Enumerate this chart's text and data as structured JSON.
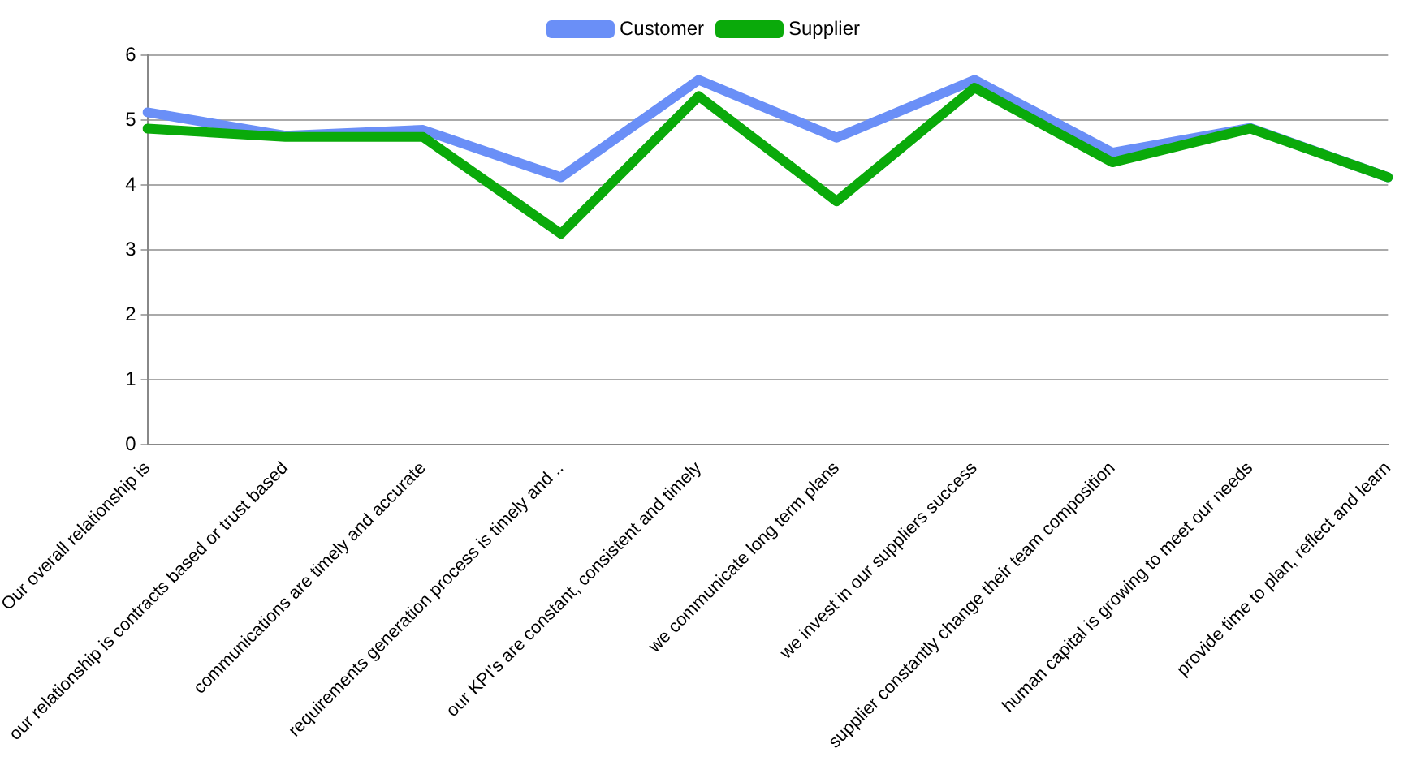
{
  "chart_data": {
    "type": "line",
    "categories": [
      "Our overall relationship is",
      "our relationship is contracts based or trust based",
      "communications are timely and accurate",
      "requirements generation process is timely and ..",
      "our KPI's are constant, consistent and timely",
      "we communicate long term plans",
      "we invest in our suppliers success",
      "supplier constantly change their team composition",
      "human capital is growing to meet our needs",
      "provide time to plan, reflect and learn"
    ],
    "series": [
      {
        "name": "Customer",
        "color": "#6a8ff7",
        "values": [
          5.12,
          4.76,
          4.85,
          4.12,
          5.62,
          4.73,
          5.62,
          4.5,
          4.88,
          4.12
        ]
      },
      {
        "name": "Supplier",
        "color": "#0aaa0a",
        "values": [
          4.87,
          4.74,
          4.74,
          3.25,
          5.37,
          3.75,
          5.5,
          4.35,
          4.87,
          4.12
        ]
      }
    ],
    "ylim": [
      0,
      6
    ],
    "yticks": [
      0,
      1,
      2,
      3,
      4,
      5,
      6
    ],
    "grid": "y",
    "legend": "top",
    "marker": "none",
    "line_style": "solid"
  }
}
